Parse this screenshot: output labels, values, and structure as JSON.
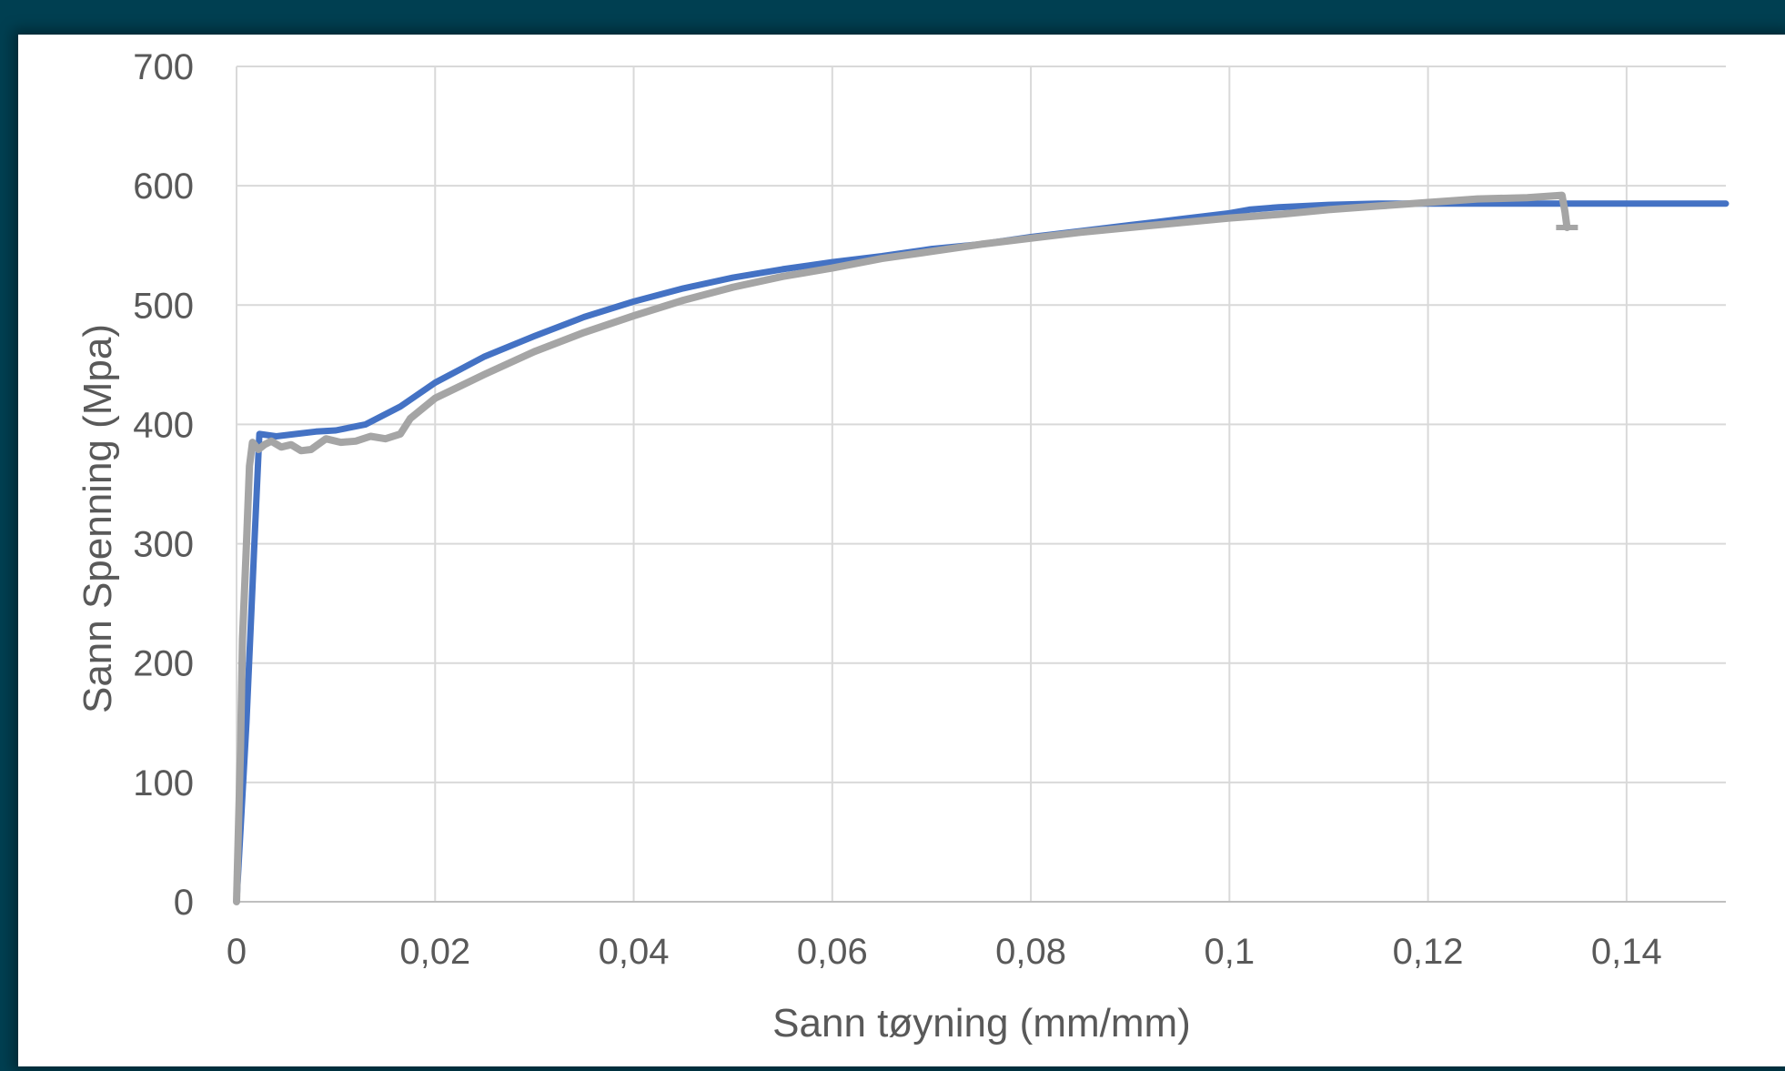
{
  "chart_data": {
    "type": "line",
    "title": "",
    "xlabel": "Sann tøyning (mm/mm)",
    "ylabel": "Sann Spenning (Mpa)",
    "xlim": [
      0,
      0.15
    ],
    "ylim": [
      0,
      700
    ],
    "x_ticks": [
      0,
      0.02,
      0.04,
      0.06,
      0.08,
      0.1,
      0.12,
      0.14
    ],
    "x_tick_labels": [
      "0",
      "0,02",
      "0,04",
      "0,06",
      "0,08",
      "0,1",
      "0,12",
      "0,14"
    ],
    "y_ticks": [
      0,
      100,
      200,
      300,
      400,
      500,
      600,
      700
    ],
    "y_tick_labels": [
      "0",
      "100",
      "200",
      "300",
      "400",
      "500",
      "600",
      "700"
    ],
    "grid": true,
    "legend": "none",
    "series": [
      {
        "color": "#4472c4",
        "points": [
          [
            0,
            0
          ],
          [
            0.001,
            150
          ],
          [
            0.0018,
            300
          ],
          [
            0.0023,
            392
          ],
          [
            0.004,
            390
          ],
          [
            0.006,
            392
          ],
          [
            0.008,
            394
          ],
          [
            0.01,
            395
          ],
          [
            0.013,
            400
          ],
          [
            0.0165,
            415
          ],
          [
            0.02,
            435
          ],
          [
            0.025,
            457
          ],
          [
            0.03,
            474
          ],
          [
            0.035,
            490
          ],
          [
            0.04,
            503
          ],
          [
            0.045,
            514
          ],
          [
            0.05,
            523
          ],
          [
            0.055,
            530
          ],
          [
            0.06,
            536
          ],
          [
            0.065,
            541
          ],
          [
            0.07,
            547
          ],
          [
            0.075,
            551
          ],
          [
            0.08,
            557
          ],
          [
            0.085,
            562
          ],
          [
            0.09,
            567
          ],
          [
            0.095,
            572
          ],
          [
            0.1,
            577
          ],
          [
            0.102,
            580
          ],
          [
            0.105,
            582
          ],
          [
            0.11,
            584
          ],
          [
            0.115,
            585
          ],
          [
            0.12,
            585
          ],
          [
            0.13,
            585
          ],
          [
            0.14,
            585
          ],
          [
            0.15,
            585
          ]
        ]
      },
      {
        "color": "#a5a5a5",
        "points": [
          [
            0,
            0
          ],
          [
            0.0004,
            130
          ],
          [
            0.0006,
            220
          ],
          [
            0.001,
            300
          ],
          [
            0.0013,
            365
          ],
          [
            0.0016,
            385
          ],
          [
            0.0022,
            379
          ],
          [
            0.0028,
            383
          ],
          [
            0.0035,
            386
          ],
          [
            0.0045,
            381
          ],
          [
            0.0055,
            383
          ],
          [
            0.0065,
            378
          ],
          [
            0.0075,
            379
          ],
          [
            0.009,
            388
          ],
          [
            0.0105,
            385
          ],
          [
            0.012,
            386
          ],
          [
            0.0135,
            390
          ],
          [
            0.015,
            388
          ],
          [
            0.0165,
            392
          ],
          [
            0.0175,
            405
          ],
          [
            0.02,
            422
          ],
          [
            0.025,
            442
          ],
          [
            0.03,
            461
          ],
          [
            0.035,
            477
          ],
          [
            0.04,
            491
          ],
          [
            0.045,
            504
          ],
          [
            0.05,
            515
          ],
          [
            0.055,
            524
          ],
          [
            0.06,
            531
          ],
          [
            0.065,
            539
          ],
          [
            0.07,
            545
          ],
          [
            0.075,
            551
          ],
          [
            0.08,
            556
          ],
          [
            0.085,
            561
          ],
          [
            0.09,
            565
          ],
          [
            0.095,
            569
          ],
          [
            0.1,
            573
          ],
          [
            0.105,
            576
          ],
          [
            0.11,
            580
          ],
          [
            0.115,
            583
          ],
          [
            0.12,
            586
          ],
          [
            0.125,
            589
          ],
          [
            0.13,
            590
          ],
          [
            0.1335,
            592
          ],
          [
            0.1338,
            578
          ],
          [
            0.134,
            565
          ]
        ]
      }
    ]
  }
}
